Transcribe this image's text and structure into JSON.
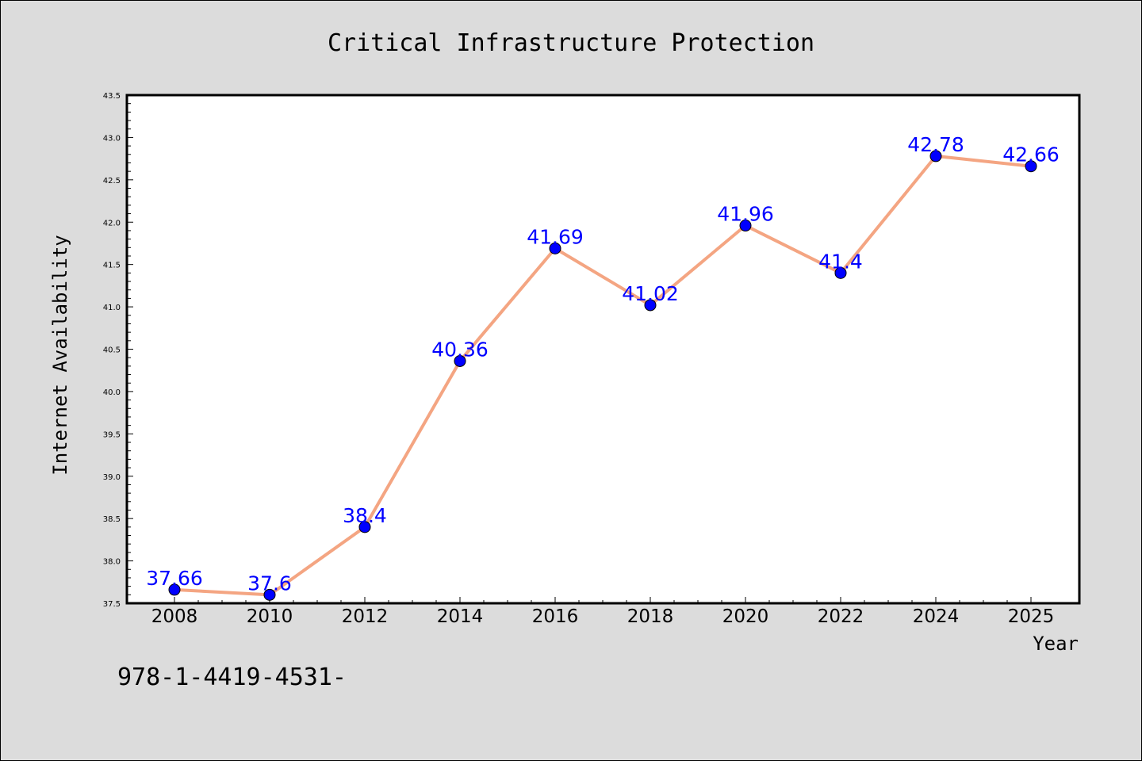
{
  "chart_data": {
    "type": "line",
    "title": "Critical Infrastructure Protection",
    "xlabel": "Year",
    "ylabel": "Internet Availability",
    "categories": [
      "2008",
      "2010",
      "2012",
      "2014",
      "2016",
      "2018",
      "2020",
      "2022",
      "2024",
      "2025"
    ],
    "series": [
      {
        "values": [
          37.66,
          37.6,
          38.4,
          40.36,
          41.69,
          41.02,
          41.96,
          41.4,
          42.78,
          42.66
        ],
        "data_labels": [
          "37.66",
          "37.6",
          "38.4",
          "40.36",
          "41.69",
          "41.02",
          "41.96",
          "41.4",
          "42.78",
          "42.66"
        ],
        "line_color": "#f4a582",
        "marker_color": "#0000ff"
      }
    ],
    "ylim": [
      37.5,
      43.5
    ],
    "yticks": [
      "37.5",
      "38.0",
      "38.5",
      "39.0",
      "39.5",
      "40.0",
      "40.5",
      "41.0",
      "41.5",
      "42.0",
      "42.5",
      "43.0",
      "43.5"
    ],
    "grid": false,
    "label_color": "#0000ff",
    "background_color": "#dcdcdc",
    "plot_background": "#ffffff"
  },
  "caption": "978-1-4419-4531-"
}
